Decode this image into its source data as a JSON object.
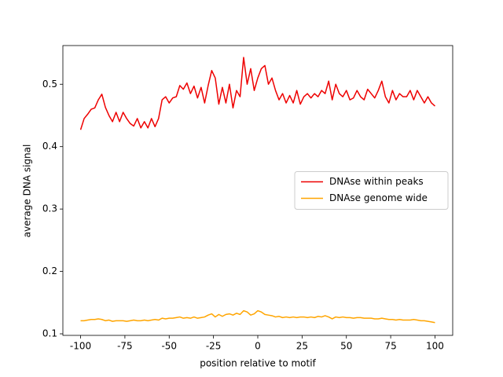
{
  "chart_data": {
    "type": "line",
    "xlabel": "position relative to motif",
    "ylabel": "average DNA signal",
    "x": [
      -100,
      -98,
      -96,
      -94,
      -92,
      -90,
      -88,
      -86,
      -84,
      -82,
      -80,
      -78,
      -76,
      -74,
      -72,
      -70,
      -68,
      -66,
      -64,
      -62,
      -60,
      -58,
      -56,
      -54,
      -52,
      -50,
      -48,
      -46,
      -44,
      -42,
      -40,
      -38,
      -36,
      -34,
      -32,
      -30,
      -28,
      -26,
      -24,
      -22,
      -20,
      -18,
      -16,
      -14,
      -12,
      -10,
      -8,
      -6,
      -4,
      -2,
      0,
      2,
      4,
      6,
      8,
      10,
      12,
      14,
      16,
      18,
      20,
      22,
      24,
      26,
      28,
      30,
      32,
      34,
      36,
      38,
      40,
      42,
      44,
      46,
      48,
      50,
      52,
      54,
      56,
      58,
      60,
      62,
      64,
      66,
      68,
      70,
      72,
      74,
      76,
      78,
      80,
      82,
      84,
      86,
      88,
      90,
      92,
      94,
      96,
      98,
      100
    ],
    "series": [
      {
        "name": "DNAse within peaks",
        "color": "#ee0000",
        "values": [
          0.427,
          0.445,
          0.452,
          0.46,
          0.462,
          0.475,
          0.484,
          0.463,
          0.45,
          0.44,
          0.455,
          0.44,
          0.455,
          0.445,
          0.437,
          0.433,
          0.445,
          0.43,
          0.44,
          0.43,
          0.445,
          0.432,
          0.445,
          0.475,
          0.48,
          0.47,
          0.478,
          0.48,
          0.498,
          0.492,
          0.502,
          0.485,
          0.497,
          0.478,
          0.495,
          0.47,
          0.498,
          0.522,
          0.51,
          0.468,
          0.495,
          0.47,
          0.5,
          0.462,
          0.49,
          0.48,
          0.543,
          0.5,
          0.525,
          0.49,
          0.51,
          0.525,
          0.53,
          0.5,
          0.51,
          0.49,
          0.475,
          0.485,
          0.47,
          0.482,
          0.47,
          0.49,
          0.468,
          0.48,
          0.485,
          0.478,
          0.485,
          0.48,
          0.49,
          0.485,
          0.505,
          0.475,
          0.5,
          0.485,
          0.48,
          0.49,
          0.475,
          0.478,
          0.49,
          0.48,
          0.475,
          0.492,
          0.485,
          0.478,
          0.49,
          0.505,
          0.48,
          0.47,
          0.49,
          0.475,
          0.485,
          0.48,
          0.48,
          0.49,
          0.475,
          0.49,
          0.48,
          0.47,
          0.48,
          0.47,
          0.465
        ]
      },
      {
        "name": "DNAse genome wide",
        "color": "#ffa500",
        "values": [
          0.121,
          0.121,
          0.122,
          0.123,
          0.123,
          0.124,
          0.123,
          0.121,
          0.122,
          0.12,
          0.121,
          0.121,
          0.121,
          0.12,
          0.121,
          0.122,
          0.121,
          0.121,
          0.122,
          0.121,
          0.122,
          0.123,
          0.122,
          0.125,
          0.124,
          0.125,
          0.125,
          0.126,
          0.127,
          0.125,
          0.126,
          0.125,
          0.127,
          0.125,
          0.126,
          0.127,
          0.13,
          0.132,
          0.127,
          0.131,
          0.128,
          0.131,
          0.132,
          0.13,
          0.133,
          0.131,
          0.137,
          0.135,
          0.13,
          0.132,
          0.137,
          0.135,
          0.131,
          0.13,
          0.129,
          0.127,
          0.128,
          0.126,
          0.127,
          0.126,
          0.127,
          0.126,
          0.127,
          0.127,
          0.126,
          0.127,
          0.126,
          0.128,
          0.127,
          0.129,
          0.127,
          0.124,
          0.127,
          0.126,
          0.127,
          0.126,
          0.126,
          0.125,
          0.126,
          0.126,
          0.125,
          0.125,
          0.125,
          0.124,
          0.124,
          0.125,
          0.124,
          0.123,
          0.123,
          0.122,
          0.123,
          0.122,
          0.122,
          0.122,
          0.123,
          0.122,
          0.121,
          0.121,
          0.12,
          0.119,
          0.118
        ]
      }
    ],
    "xlim": [
      -110,
      110
    ],
    "xticks": [
      -100,
      -75,
      -50,
      -25,
      0,
      25,
      50,
      75,
      100
    ],
    "ylim": [
      0.0975,
      0.562
    ],
    "yticks": [
      0.1,
      0.2,
      0.3,
      0.4,
      0.5
    ],
    "legend": "center right",
    "grid": false
  }
}
